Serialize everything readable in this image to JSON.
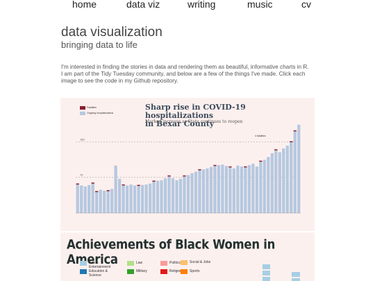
{
  "nav": {
    "items": [
      "home",
      "data viz",
      "writing",
      "music",
      "cv"
    ]
  },
  "header": {
    "title": "data visualization",
    "subtitle": "bringing data to life"
  },
  "intro": "I'm interested in finding the stories in data and rendering them as beautiful, informative charts in R. I am part of the Tidy Tuesday community, and below are a few of the things I've made. Click each image to see the code in my Github repository.",
  "chart_data": [
    {
      "type": "bar",
      "title": "Sharp rise in COVID-19 hospitalizations\nin Bexar County",
      "subtitle": "Marked increase as State continues to reopen",
      "legend": [
        "Fatalities",
        "Ongoing hospitalizations"
      ],
      "reference_lines": [
        75,
        150
      ],
      "annotation": "4 fatalities",
      "colors": {
        "hospitalizations": "#b6c8e0",
        "fatalities": "#8b1e2e",
        "background": "#fcf0ee"
      },
      "values": [
        60,
        58,
        56,
        59,
        62,
        44,
        49,
        47,
        46,
        51,
        100,
        72,
        58,
        58,
        60,
        58,
        57,
        59,
        60,
        62,
        66,
        68,
        69,
        73,
        77,
        73,
        69,
        72,
        77,
        80,
        84,
        87,
        90,
        92,
        94,
        97,
        99,
        101,
        102,
        99,
        96,
        94,
        100,
        98,
        96,
        101,
        104,
        98,
        108,
        112,
        118,
        126,
        132,
        128,
        136,
        142,
        149,
        172,
        186
      ]
    },
    {
      "type": "bar",
      "title": "Achievements of Black Women in America",
      "legend": [
        "Arts & Entertainment",
        "Education & Science",
        "Law",
        "Military",
        "Politics",
        "Religion",
        "Social & Jobs",
        "Sports"
      ],
      "colors": [
        "#a6cee3",
        "#1f78b4",
        "#b2df8a",
        "#33a02c",
        "#fb9a99",
        "#e31a1c",
        "#fdbf6f",
        "#ff7f00"
      ]
    }
  ]
}
